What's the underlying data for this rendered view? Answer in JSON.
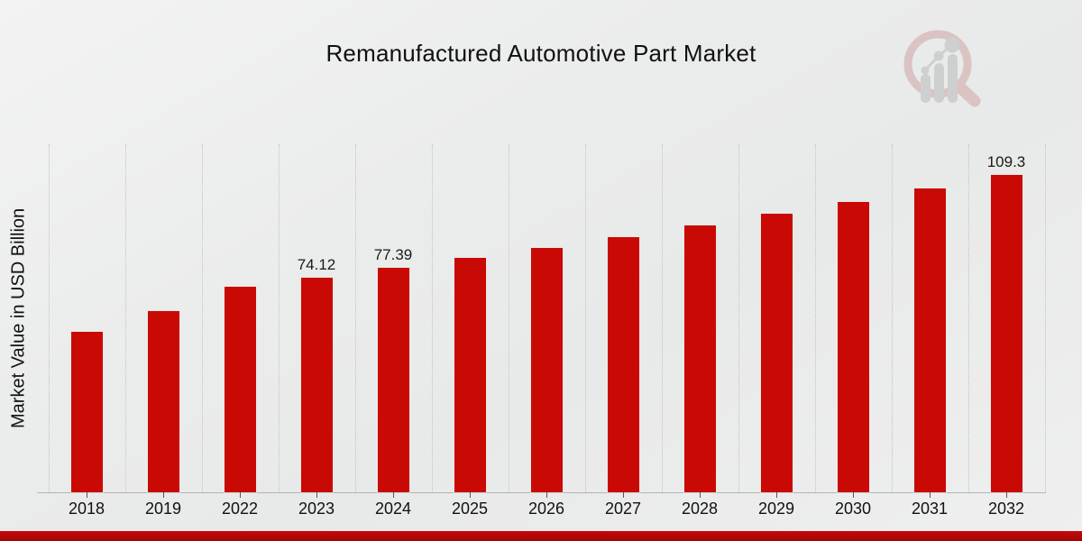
{
  "page": {
    "title": "Remanufactured Automotive Part Market",
    "footer_accent_color": "#bb0606"
  },
  "chart_data": {
    "type": "bar",
    "title": "Remanufactured Automotive Part Market",
    "xlabel": "",
    "ylabel": "Market Value in USD Billion",
    "ylim": [
      0,
      120
    ],
    "grid": "vertical-dotted",
    "legend": "none",
    "bar_color": "#c90a04",
    "categories": [
      "2018",
      "2019",
      "2022",
      "2023",
      "2024",
      "2025",
      "2026",
      "2027",
      "2028",
      "2029",
      "2030",
      "2031",
      "2032"
    ],
    "values": [
      55.5,
      62.6,
      70.99,
      74.12,
      77.39,
      80.8,
      84.37,
      88.09,
      91.97,
      96.03,
      100.27,
      104.69,
      109.3
    ],
    "value_labels": [
      "",
      "",
      "",
      "74.12",
      "77.39",
      "",
      "",
      "",
      "",
      "",
      "",
      "",
      "109.3"
    ]
  },
  "logo": {
    "name": "magnifier-bar-chart-watermark",
    "ring_color": "#cf9e9e",
    "glyph_color": "#b5b5b5"
  }
}
